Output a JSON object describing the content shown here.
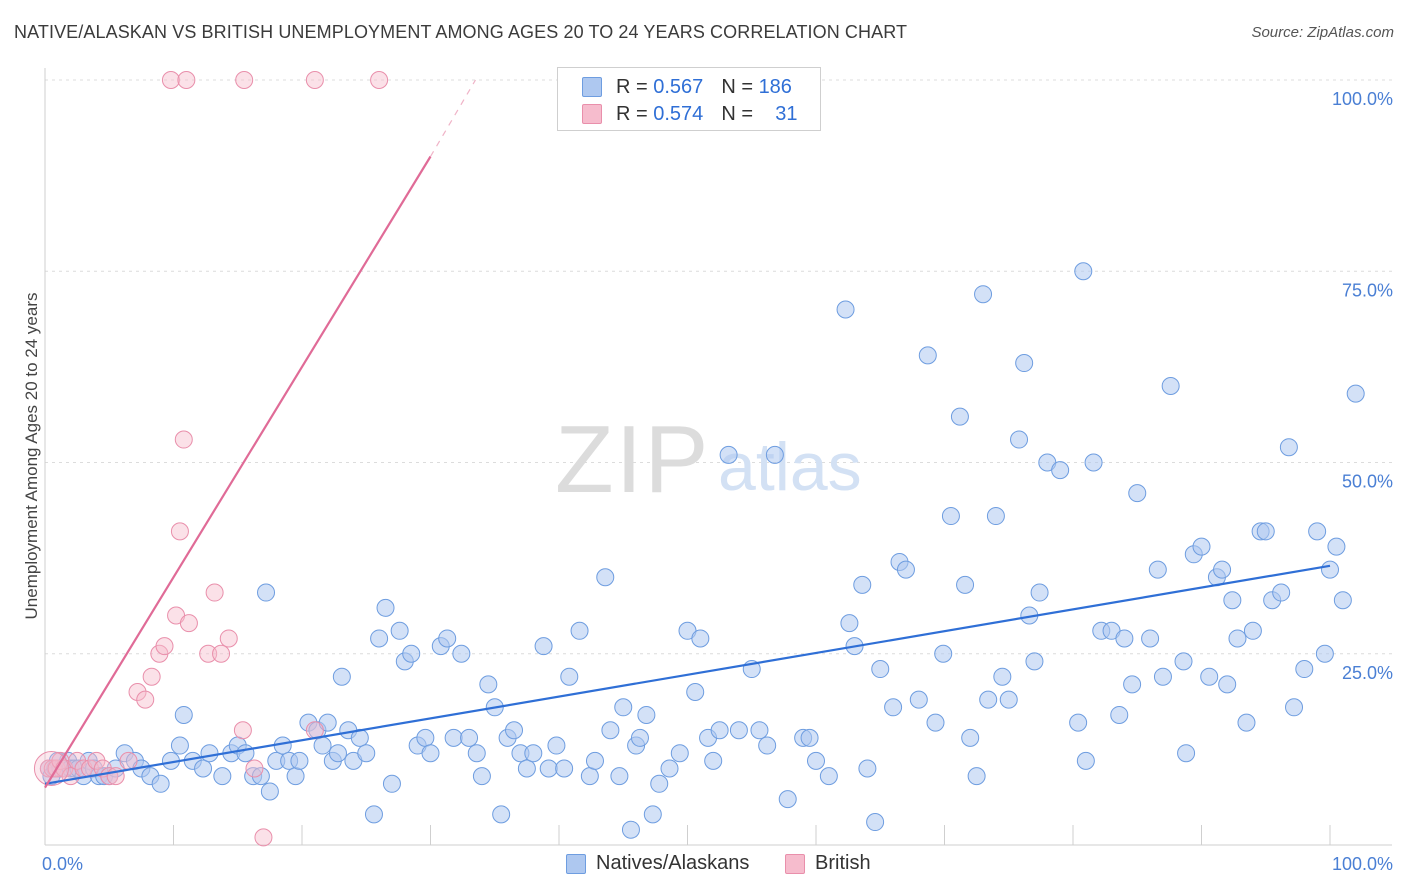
{
  "title": "NATIVE/ALASKAN VS BRITISH UNEMPLOYMENT AMONG AGES 20 TO 24 YEARS CORRELATION CHART",
  "source": "Source: ZipAtlas.com",
  "legend": {
    "r_label": "R =",
    "n_label": "N =",
    "rows": [
      {
        "r": "0.567",
        "n": "186"
      },
      {
        "r": "0.574",
        "n": "31"
      }
    ]
  },
  "watermark": {
    "zip": "ZIP",
    "atlas": "atlas"
  },
  "colors": {
    "blue_fill": "#aec8f0",
    "blue_stroke": "#6e9de0",
    "blue_line": "#2f6fd6",
    "pink_fill": "#f6bccd",
    "pink_stroke": "#e98fab",
    "pink_line": "#e06b97",
    "axis_label": "#4a7fd4",
    "grid": "#dcdcdc"
  },
  "chart_data": {
    "type": "scatter",
    "title": "NATIVE/ALASKAN VS BRITISH UNEMPLOYMENT AMONG AGES 20 TO 24 YEARS CORRELATION CHART",
    "xlabel": "",
    "ylabel": "Unemployment Among Ages 20 to 24 years",
    "xlim": [
      0,
      100
    ],
    "ylim": [
      0,
      100
    ],
    "x_tick_labels": [
      "0.0%",
      "100.0%"
    ],
    "y_tick_labels": [
      "25.0%",
      "50.0%",
      "75.0%",
      "100.0%"
    ],
    "y_ticks": [
      25,
      50,
      75,
      100
    ],
    "series": [
      {
        "name": "Natives/Alaskans",
        "r": 0.567,
        "n": 186,
        "trend": {
          "x": [
            0,
            100
          ],
          "y": [
            8.0,
            36.5
          ]
        },
        "points": [
          [
            0.3,
            10
          ],
          [
            0.5,
            9
          ],
          [
            0.8,
            10
          ],
          [
            1,
            11
          ],
          [
            1.2,
            10
          ],
          [
            1.5,
            10
          ],
          [
            1.8,
            11
          ],
          [
            2,
            10
          ],
          [
            2.3,
            10
          ],
          [
            2.6,
            10
          ],
          [
            3,
            9
          ],
          [
            3.4,
            11
          ],
          [
            3.8,
            10
          ],
          [
            4.2,
            9
          ],
          [
            4.6,
            9
          ],
          [
            5,
            9
          ],
          [
            5.5,
            10
          ],
          [
            6.2,
            12
          ],
          [
            7,
            11
          ],
          [
            7.5,
            10
          ],
          [
            8.2,
            9
          ],
          [
            9,
            8
          ],
          [
            9.8,
            11
          ],
          [
            10.5,
            13
          ],
          [
            10.8,
            17
          ],
          [
            11.5,
            11
          ],
          [
            12.3,
            10
          ],
          [
            12.8,
            12
          ],
          [
            13.8,
            9
          ],
          [
            14.5,
            12
          ],
          [
            15,
            13
          ],
          [
            15.6,
            12
          ],
          [
            16.2,
            9
          ],
          [
            16.8,
            9
          ],
          [
            17.2,
            33
          ],
          [
            17.5,
            7
          ],
          [
            18,
            11
          ],
          [
            18.5,
            13
          ],
          [
            19,
            11
          ],
          [
            19.5,
            9
          ],
          [
            19.8,
            11
          ],
          [
            20.5,
            16
          ],
          [
            21.2,
            15
          ],
          [
            21.6,
            13
          ],
          [
            22,
            16
          ],
          [
            22.4,
            11
          ],
          [
            22.8,
            12
          ],
          [
            23.1,
            22
          ],
          [
            23.6,
            15
          ],
          [
            24,
            11
          ],
          [
            24.5,
            14
          ],
          [
            25,
            12
          ],
          [
            25.6,
            4
          ],
          [
            26,
            27
          ],
          [
            26.5,
            31
          ],
          [
            27,
            8
          ],
          [
            27.6,
            28
          ],
          [
            28,
            24
          ],
          [
            28.5,
            25
          ],
          [
            29,
            13
          ],
          [
            29.6,
            14
          ],
          [
            30,
            12
          ],
          [
            30.8,
            26
          ],
          [
            31.3,
            27
          ],
          [
            31.8,
            14
          ],
          [
            32.4,
            25
          ],
          [
            33,
            14
          ],
          [
            33.6,
            12
          ],
          [
            34,
            9
          ],
          [
            34.5,
            21
          ],
          [
            35,
            18
          ],
          [
            35.5,
            4
          ],
          [
            36,
            14
          ],
          [
            36.5,
            15
          ],
          [
            37,
            12
          ],
          [
            37.5,
            10
          ],
          [
            38,
            12
          ],
          [
            38.8,
            26
          ],
          [
            39.2,
            10
          ],
          [
            39.8,
            13
          ],
          [
            40.4,
            10
          ],
          [
            40.8,
            22
          ],
          [
            41.6,
            28
          ],
          [
            42.4,
            9
          ],
          [
            42.8,
            11
          ],
          [
            43.6,
            35
          ],
          [
            44,
            15
          ],
          [
            44.7,
            9
          ],
          [
            45,
            18
          ],
          [
            45.6,
            2
          ],
          [
            46,
            13
          ],
          [
            46.3,
            14
          ],
          [
            46.8,
            17
          ],
          [
            47.3,
            4
          ],
          [
            47.8,
            8
          ],
          [
            48.6,
            10
          ],
          [
            49.4,
            12
          ],
          [
            50,
            28
          ],
          [
            50.6,
            20
          ],
          [
            51,
            27
          ],
          [
            51.6,
            14
          ],
          [
            52,
            11
          ],
          [
            52.5,
            15
          ],
          [
            53.2,
            51
          ],
          [
            54,
            15
          ],
          [
            55,
            23
          ],
          [
            55.6,
            15
          ],
          [
            56.2,
            13
          ],
          [
            56.8,
            51
          ],
          [
            57.8,
            6
          ],
          [
            59,
            14
          ],
          [
            59.5,
            14
          ],
          [
            60,
            11
          ],
          [
            61,
            9
          ],
          [
            62.3,
            70
          ],
          [
            62.6,
            29
          ],
          [
            63,
            26
          ],
          [
            63.6,
            34
          ],
          [
            64,
            10
          ],
          [
            64.6,
            3
          ],
          [
            65,
            23
          ],
          [
            66,
            18
          ],
          [
            66.5,
            37
          ],
          [
            67,
            36
          ],
          [
            68,
            19
          ],
          [
            68.7,
            64
          ],
          [
            69.3,
            16
          ],
          [
            69.9,
            25
          ],
          [
            70.5,
            43
          ],
          [
            71.2,
            56
          ],
          [
            71.6,
            34
          ],
          [
            72,
            14
          ],
          [
            72.5,
            9
          ],
          [
            73,
            72
          ],
          [
            73.4,
            19
          ],
          [
            74,
            43
          ],
          [
            74.5,
            22
          ],
          [
            75,
            19
          ],
          [
            75.8,
            53
          ],
          [
            76.2,
            63
          ],
          [
            76.6,
            30
          ],
          [
            77,
            24
          ],
          [
            77.4,
            33
          ],
          [
            78,
            50
          ],
          [
            79,
            49
          ],
          [
            80.4,
            16
          ],
          [
            80.8,
            75
          ],
          [
            81,
            11
          ],
          [
            81.6,
            50
          ],
          [
            82.2,
            28
          ],
          [
            83,
            28
          ],
          [
            83.6,
            17
          ],
          [
            84,
            27
          ],
          [
            84.6,
            21
          ],
          [
            85,
            46
          ],
          [
            86,
            27
          ],
          [
            86.6,
            36
          ],
          [
            87,
            22
          ],
          [
            87.6,
            60
          ],
          [
            88.6,
            24
          ],
          [
            88.8,
            12
          ],
          [
            89.4,
            38
          ],
          [
            90,
            39
          ],
          [
            90.6,
            22
          ],
          [
            91.2,
            35
          ],
          [
            91.6,
            36
          ],
          [
            92,
            21
          ],
          [
            92.4,
            32
          ],
          [
            92.8,
            27
          ],
          [
            93.5,
            16
          ],
          [
            94,
            28
          ],
          [
            94.6,
            41
          ],
          [
            95,
            41
          ],
          [
            95.5,
            32
          ],
          [
            96.2,
            33
          ],
          [
            96.8,
            52
          ],
          [
            97.2,
            18
          ],
          [
            98,
            23
          ],
          [
            99,
            41
          ],
          [
            99.6,
            25
          ],
          [
            100,
            36
          ],
          [
            100.5,
            39
          ],
          [
            101,
            32
          ],
          [
            102,
            59
          ]
        ]
      },
      {
        "name": "British",
        "r": 0.574,
        "n": 31,
        "trend": {
          "x": [
            0,
            30
          ],
          "y": [
            7.5,
            90
          ]
        },
        "trend_dashed": {
          "x": [
            30,
            33.5
          ],
          "y": [
            90,
            100
          ]
        },
        "points": [
          [
            0.3,
            10
          ],
          [
            0.6,
            10
          ],
          [
            0.9,
            10
          ],
          [
            1.2,
            11
          ],
          [
            1.5,
            10
          ],
          [
            2,
            9
          ],
          [
            2.5,
            11
          ],
          [
            3,
            10
          ],
          [
            3.5,
            10
          ],
          [
            4,
            11
          ],
          [
            4.5,
            10
          ],
          [
            5,
            9
          ],
          [
            5.5,
            9
          ],
          [
            6.5,
            11
          ],
          [
            7.2,
            20
          ],
          [
            7.8,
            19
          ],
          [
            8.3,
            22
          ],
          [
            8.9,
            25
          ],
          [
            9.3,
            26
          ],
          [
            10.2,
            30
          ],
          [
            10.5,
            41
          ],
          [
            10.8,
            53
          ],
          [
            11.2,
            29
          ],
          [
            12.7,
            25
          ],
          [
            13.2,
            33
          ],
          [
            13.7,
            25
          ],
          [
            14.3,
            27
          ],
          [
            15.4,
            15
          ],
          [
            16.3,
            10
          ],
          [
            17,
            1
          ],
          [
            21,
            15
          ]
        ],
        "top_points": [
          [
            9.8,
            100
          ],
          [
            11,
            100
          ],
          [
            15.5,
            100
          ],
          [
            21,
            100
          ],
          [
            26,
            100
          ]
        ]
      }
    ]
  },
  "bottom_legend": [
    "Natives/Alaskans",
    "British"
  ]
}
